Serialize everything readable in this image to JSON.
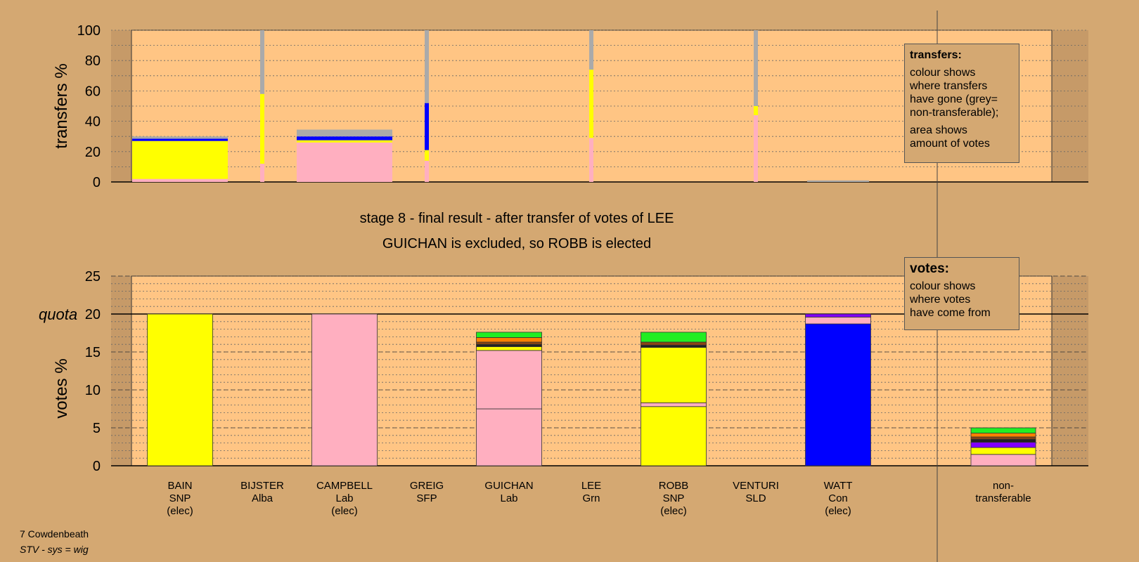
{
  "titles": {
    "stage": "stage 8 - final result - after transfer of votes of LEE",
    "result": "GUICHAN is excluded, so ROBB is elected"
  },
  "footer": {
    "ward": "7 Cowdenbeath",
    "system": "STV - sys = wig"
  },
  "legend_transfers": {
    "title": "transfers:",
    "line1": "colour shows\nwhere transfers\nhave gone (grey=\nnon-transferable);",
    "line2": "area shows\namount of votes"
  },
  "legend_votes": {
    "title": "votes:",
    "line1": "colour shows\nwhere votes\nhave come from"
  },
  "colors": {
    "background": "#d4a872",
    "plot": "#ffc584",
    "shade": "#c69a68",
    "SNP": "#ffff00",
    "Alba": "#ff8000",
    "Lab": "#ffafc0",
    "SFP": "#222222",
    "Grn": "#22ee22",
    "SLD": "#8b4513",
    "Con": "#0000ff",
    "Ind": "#8000ff",
    "nontransferable": "#aaaaaa"
  },
  "chart_data": {
    "type": "bar",
    "candidates": [
      {
        "name": "BAIN",
        "party": "SNP",
        "status": "(elec)"
      },
      {
        "name": "BIJSTER",
        "party": "Alba",
        "status": ""
      },
      {
        "name": "CAMPBELL",
        "party": "Lab",
        "status": "(elec)"
      },
      {
        "name": "GREIG",
        "party": "SFP",
        "status": ""
      },
      {
        "name": "GUICHAN",
        "party": "Lab",
        "status": ""
      },
      {
        "name": "LEE",
        "party": "Grn",
        "status": ""
      },
      {
        "name": "ROBB",
        "party": "SNP",
        "status": "(elec)"
      },
      {
        "name": "VENTURI",
        "party": "SLD",
        "status": ""
      },
      {
        "name": "WATT",
        "party": "Con",
        "status": "(elec)"
      }
    ],
    "nontransferable_label": [
      "non-",
      "transferable"
    ],
    "transfers": {
      "ylabel": "transfers %",
      "ylim": [
        0,
        100
      ],
      "yticks": [
        0,
        20,
        40,
        60,
        80,
        100
      ],
      "bars": [
        {
          "column": 0,
          "width": "wide",
          "segments": [
            {
              "party": "Lab",
              "value": 2
            },
            {
              "party": "SNP",
              "value": 25
            },
            {
              "party": "Con",
              "value": 1.5
            },
            {
              "party": "nontransferable",
              "value": 1.5
            }
          ]
        },
        {
          "column": 1,
          "width": "thin",
          "segments": [
            {
              "party": "Lab",
              "value": 12
            },
            {
              "party": "SNP",
              "value": 46
            },
            {
              "party": "nontransferable",
              "value": 42
            }
          ]
        },
        {
          "column": 2,
          "width": "wide",
          "segments": [
            {
              "party": "Lab",
              "value": 26
            },
            {
              "party": "SNP",
              "value": 1.5
            },
            {
              "party": "Con",
              "value": 2.5
            },
            {
              "party": "nontransferable",
              "value": 4.5
            }
          ]
        },
        {
          "column": 3,
          "width": "thin",
          "segments": [
            {
              "party": "Lab",
              "value": 14
            },
            {
              "party": "SNP",
              "value": 7
            },
            {
              "party": "Con",
              "value": 31
            },
            {
              "party": "nontransferable",
              "value": 48
            }
          ]
        },
        {
          "column": 5,
          "width": "thin",
          "segments": [
            {
              "party": "Lab",
              "value": 29
            },
            {
              "party": "SNP",
              "value": 45
            },
            {
              "party": "nontransferable",
              "value": 26
            }
          ]
        },
        {
          "column": 7,
          "width": "thin",
          "segments": [
            {
              "party": "Lab",
              "value": 44
            },
            {
              "party": "SNP",
              "value": 6
            },
            {
              "party": "nontransferable",
              "value": 50
            }
          ]
        },
        {
          "column": 8,
          "width": "mid",
          "segments": [
            {
              "party": "nontransferable",
              "value": 1
            }
          ]
        }
      ]
    },
    "votes": {
      "ylabel": "votes %",
      "ylim": [
        0,
        25
      ],
      "yticks": [
        0,
        5,
        10,
        15,
        20,
        25
      ],
      "quota": 20,
      "quota_label": "quota",
      "bars": [
        {
          "column": 0,
          "segments": [
            {
              "party": "SNP",
              "value": 20
            }
          ]
        },
        {
          "column": 1,
          "segments": []
        },
        {
          "column": 2,
          "segments": [
            {
              "party": "Lab",
              "value": 20
            }
          ]
        },
        {
          "column": 3,
          "segments": []
        },
        {
          "column": 4,
          "segments": [
            {
              "party": "Lab",
              "value": 7.5
            },
            {
              "party": "Lab",
              "value": 7.7
            },
            {
              "party": "SNP",
              "value": 0.5
            },
            {
              "party": "SFP",
              "value": 0.3
            },
            {
              "party": "SLD",
              "value": 0.3
            },
            {
              "party": "Alba",
              "value": 0.6
            },
            {
              "party": "Grn",
              "value": 0.7
            }
          ]
        },
        {
          "column": 5,
          "segments": []
        },
        {
          "column": 6,
          "segments": [
            {
              "party": "SNP",
              "value": 7.8
            },
            {
              "party": "Lab",
              "value": 0.5
            },
            {
              "party": "SNP",
              "value": 7.3
            },
            {
              "party": "SFP",
              "value": 0.3
            },
            {
              "party": "SLD",
              "value": 0.4
            },
            {
              "party": "Grn",
              "value": 1.3
            }
          ]
        },
        {
          "column": 7,
          "segments": []
        },
        {
          "column": 8,
          "segments": [
            {
              "party": "Con",
              "value": 18.7
            },
            {
              "party": "Lab",
              "value": 0.9
            },
            {
              "party": "Ind",
              "value": 0.4
            }
          ]
        },
        {
          "column": "nt",
          "segments": [
            {
              "party": "Lab",
              "value": 1.5
            },
            {
              "party": "SNP",
              "value": 0.9
            },
            {
              "party": "Ind",
              "value": 0.7
            },
            {
              "party": "SFP",
              "value": 0.4
            },
            {
              "party": "SLD",
              "value": 0.3
            },
            {
              "party": "Alba",
              "value": 0.5
            },
            {
              "party": "Grn",
              "value": 0.7
            }
          ]
        }
      ]
    }
  }
}
